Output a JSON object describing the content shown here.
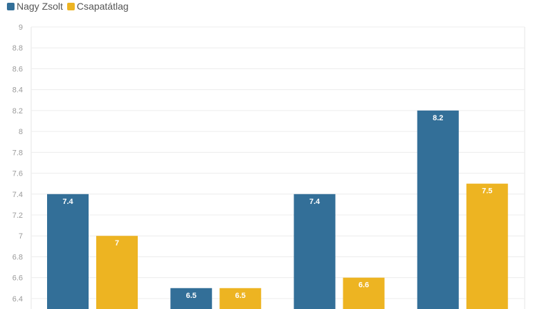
{
  "chart_data": {
    "type": "bar",
    "categories": [
      "",
      "",
      "",
      ""
    ],
    "series": [
      {
        "name": "Nagy Zsolt",
        "values": [
          7.4,
          6.5,
          7.4,
          8.2
        ],
        "color": "#336f98"
      },
      {
        "name": "Csapatátlag",
        "values": [
          7.0,
          6.5,
          6.6,
          7.5
        ],
        "color": "#edb422"
      }
    ],
    "title": "",
    "xlabel": "",
    "ylabel": "",
    "ylim": [
      6.3,
      9
    ],
    "yticks": [
      "6.4",
      "6.6",
      "6.8",
      "7",
      "7.2",
      "7.4",
      "7.6",
      "7.8",
      "8",
      "8.2",
      "8.4",
      "8.6",
      "8.8",
      "9"
    ],
    "grid": true,
    "legend": "top-left"
  }
}
